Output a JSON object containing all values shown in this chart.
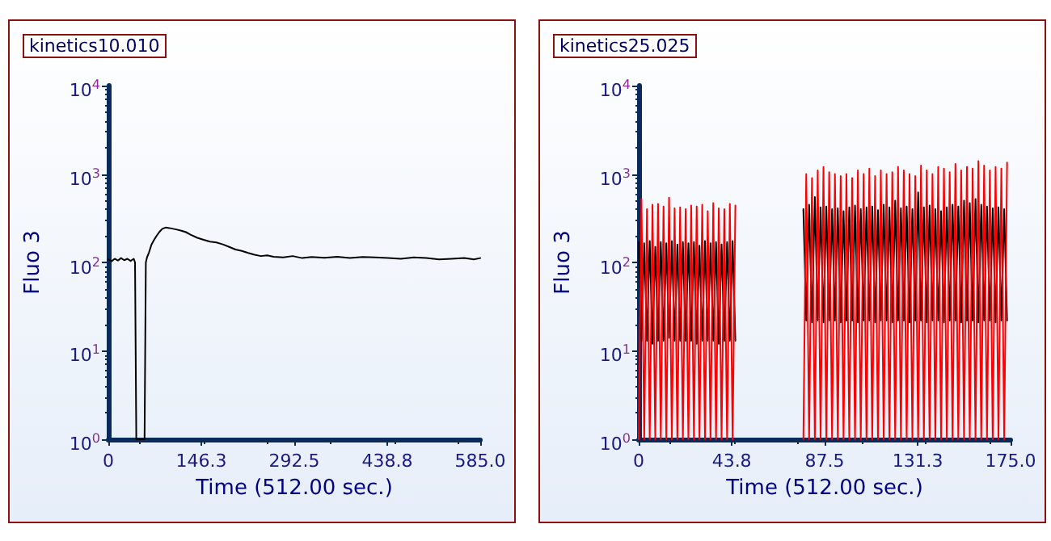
{
  "chart_data": [
    {
      "type": "line",
      "title": "kinetics10.010",
      "xlabel": "Time (512.00 sec.)",
      "ylabel": "Fluo 3",
      "log": "y",
      "grid": false,
      "marker": "none",
      "line_style": "solid",
      "xlim": [
        0,
        585
      ],
      "xticks": [
        0,
        146.3,
        292.5,
        438.8,
        {
          "value": 585,
          "label": "585.0"
        }
      ],
      "ylim": [
        1,
        10000
      ],
      "yticks": [
        {
          "value": 1,
          "label": "10$^{0}$"
        },
        {
          "value": 10,
          "label": "10$^{1}$"
        },
        {
          "value": 100,
          "label": "10$^{2}$"
        },
        {
          "value": 1000,
          "label": "10$^{3}$"
        },
        {
          "value": 10000,
          "label": "10$^{4}$"
        }
      ],
      "x": [
        0,
        5,
        10,
        15,
        20,
        25,
        30,
        35,
        40,
        42,
        43,
        44,
        57,
        58,
        59,
        61,
        64,
        68,
        72,
        76,
        80,
        85,
        90,
        96,
        102,
        108,
        115,
        122,
        130,
        140,
        150,
        160,
        170,
        180,
        190,
        200,
        210,
        220,
        230,
        240,
        250,
        260,
        275,
        290,
        305,
        320,
        340,
        360,
        380,
        400,
        420,
        440,
        460,
        480,
        500,
        520,
        540,
        560,
        575,
        585
      ],
      "series": [
        {
          "color": "#000000",
          "values": [
            108,
            103,
            110,
            105,
            112,
            106,
            110,
            104,
            110,
            100,
            10,
            1,
            1,
            10,
            100,
            115,
            130,
            160,
            180,
            200,
            220,
            240,
            248,
            245,
            240,
            235,
            228,
            220,
            205,
            190,
            180,
            172,
            168,
            160,
            150,
            140,
            135,
            128,
            122,
            118,
            120,
            116,
            114,
            118,
            112,
            115,
            113,
            116,
            112,
            115,
            114,
            112,
            110,
            114,
            112,
            108,
            110,
            112,
            108,
            112
          ]
        }
      ]
    },
    {
      "type": "line",
      "title": "kinetics25.025",
      "xlabel": "Time (512.00 sec.)",
      "ylabel": "Fluo 3",
      "log": "y",
      "grid": false,
      "marker": "none",
      "line_style": "solid",
      "xlim": [
        0,
        175
      ],
      "xticks": [
        0,
        43.8,
        87.5,
        131.3,
        {
          "value": 175,
          "label": "175.0"
        }
      ],
      "ylim": [
        1,
        10000
      ],
      "yticks": [
        {
          "value": 1,
          "label": "10$^{0}$"
        },
        {
          "value": 10,
          "label": "10$^{1}$"
        },
        {
          "value": 100,
          "label": "10$^{2}$"
        },
        {
          "value": 1000,
          "label": "10$^{3}$"
        },
        {
          "value": 10000,
          "label": "10$^{4}$"
        }
      ],
      "x": [
        0,
        1.3,
        2.6,
        3.9,
        5.2,
        6.5,
        7.8,
        9.1,
        10.4,
        11.7,
        13,
        14.3,
        15.6,
        16.9,
        18.2,
        19.5,
        20.8,
        22.1,
        23.4,
        24.7,
        26,
        27.3,
        28.6,
        29.9,
        31.2,
        32.5,
        33.8,
        35.1,
        36.4,
        37.7,
        39,
        40.3,
        41.6,
        42.9,
        44.2,
        45.5,
        46.5,
        77.5,
        78.85,
        80.2,
        81.55,
        82.9,
        84.25,
        85.6,
        86.95,
        88.3,
        89.65,
        91,
        92.35,
        93.7,
        95.05,
        96.4,
        97.75,
        99.1,
        100.45,
        101.8,
        103.15,
        104.5,
        105.85,
        107.2,
        108.55,
        109.9,
        111.25,
        112.6,
        113.95,
        115.3,
        116.65,
        118,
        119.35,
        120.7,
        122.05,
        123.4,
        124.75,
        126.1,
        127.45,
        128.8,
        130.15,
        131.5,
        132.85,
        134.2,
        135.55,
        136.9,
        138.25,
        139.6,
        140.95,
        142.3,
        143.65,
        145,
        146.35,
        147.7,
        149.05,
        150.4,
        151.75,
        153.1,
        154.45,
        155.8,
        157.15,
        158.5,
        159.85,
        161.2,
        162.55,
        163.9,
        165.25,
        166.6,
        167.95,
        169.3,
        170.65,
        172,
        173.35
      ],
      "series": [
        {
          "color": "#000000",
          "values": [
            170,
            13,
            165,
            13,
            175,
            12,
            150,
            13,
            170,
            13,
            165,
            14,
            175,
            13,
            160,
            13,
            170,
            13,
            165,
            13,
            170,
            12,
            155,
            13,
            175,
            13,
            165,
            13,
            170,
            12,
            160,
            13,
            170,
            13,
            175,
            13,
            null,
            400,
            22,
            450,
            21,
            550,
            22,
            420,
            21,
            430,
            22,
            400,
            22,
            410,
            21,
            380,
            22,
            420,
            22,
            440,
            21,
            400,
            22,
            420,
            22,
            430,
            21,
            390,
            22,
            450,
            22,
            420,
            21,
            500,
            22,
            410,
            22,
            430,
            21,
            400,
            22,
            620,
            22,
            420,
            21,
            440,
            22,
            400,
            22,
            380,
            21,
            420,
            22,
            450,
            22,
            430,
            21,
            500,
            22,
            470,
            22,
            520,
            21,
            450,
            22,
            430,
            22,
            410,
            21,
            420,
            22,
            400,
            22
          ]
        },
        {
          "color": "#ff0000",
          "values": [
            1,
            520,
            1,
            400,
            1,
            450,
            1,
            460,
            1,
            430,
            1,
            540,
            1,
            410,
            1,
            420,
            1,
            400,
            1,
            440,
            1,
            430,
            1,
            450,
            1,
            380,
            1,
            470,
            1,
            410,
            1,
            400,
            1,
            460,
            1,
            440,
            null,
            1,
            1000,
            1,
            900,
            1,
            1100,
            1,
            1200,
            1,
            1050,
            1,
            1000,
            1,
            950,
            1,
            1000,
            1,
            900,
            1,
            1100,
            1,
            1000,
            1,
            1150,
            1,
            950,
            1,
            1100,
            1,
            1000,
            1,
            1050,
            1,
            1200,
            1,
            1100,
            1,
            1000,
            1,
            950,
            1,
            1250,
            1,
            1100,
            1,
            1000,
            1,
            1200,
            1,
            1150,
            1,
            1050,
            1,
            1300,
            1,
            1100,
            1,
            1200,
            1,
            1150,
            1,
            1400,
            1,
            1250,
            1,
            1100,
            1,
            1200,
            1,
            1150,
            1,
            1350
          ]
        }
      ]
    }
  ]
}
